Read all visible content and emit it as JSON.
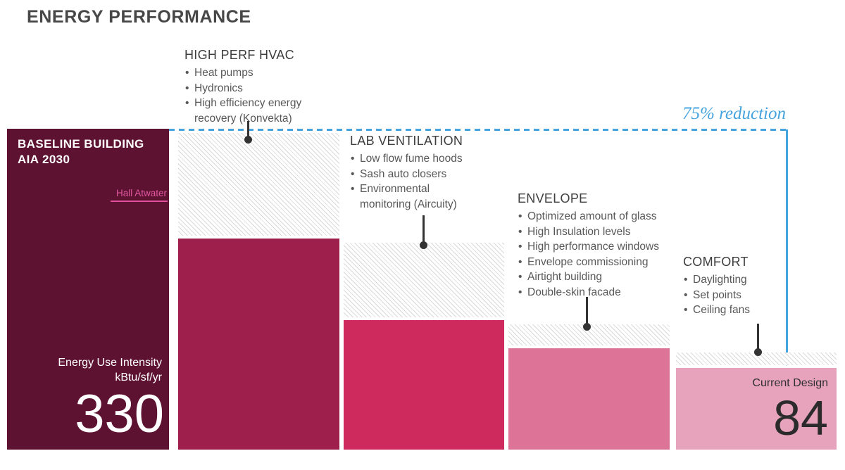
{
  "page": {
    "title": "ENERGY PERFORMANCE"
  },
  "annotation": {
    "reduction": "75% reduction"
  },
  "baseline_bar": {
    "title_line1": "BASELINE BUILDING",
    "title_line2": "AIA 2030",
    "link_label": "Hall Atwater",
    "metric_line1": "Energy Use Intensity",
    "metric_line2": "kBtu/sf/yr",
    "value": "330"
  },
  "current_bar": {
    "label": "Current Design",
    "value": "84"
  },
  "measures": [
    {
      "title": "HIGH PERF HVAC",
      "bullets": [
        "Heat pumps",
        "Hydronics",
        "High efficiency energy recovery (Konvekta)"
      ]
    },
    {
      "title": "LAB VENTILATION",
      "bullets": [
        "Low flow fume hoods",
        "Sash auto closers",
        "Environmental monitoring (Aircuity)"
      ]
    },
    {
      "title": "ENVELOPE",
      "bullets": [
        "Optimized amount of glass",
        "High Insulation levels",
        "High performance windows",
        "Envelope commissioning",
        "Airtight building",
        "Double-skin facade"
      ]
    },
    {
      "title": "COMFORT",
      "bullets": [
        "Daylighting",
        "Set points",
        "Ceiling fans"
      ]
    }
  ],
  "colors": {
    "bars": [
      "#5e1232",
      "#9e1f4b",
      "#ce2a5e",
      "#dd7397",
      "#e8a3bc"
    ],
    "accent_blue": "#45a3dd",
    "link_pink": "#e0579f",
    "leader_dark": "#333333",
    "title_gray": "#474747"
  },
  "chart_data": {
    "type": "bar",
    "subtype": "waterfall",
    "title": "ENERGY PERFORMANCE",
    "unit": "kBtu/sf/yr",
    "ylabel": "Energy Use Intensity (kBtu/sf/yr)",
    "categories": [
      "Baseline Building AIA 2030",
      "High Perf HVAC",
      "Lab Ventilation",
      "Envelope",
      "Comfort (Current Design)"
    ],
    "values": [
      330,
      217,
      133,
      104,
      84
    ],
    "labeled_values": {
      "baseline": 330,
      "current_design": 84
    },
    "annotations": [
      "75% reduction"
    ],
    "ylim": [
      0,
      330
    ],
    "grid": false,
    "legend": false,
    "hatch_means": "reduction from previous step"
  }
}
